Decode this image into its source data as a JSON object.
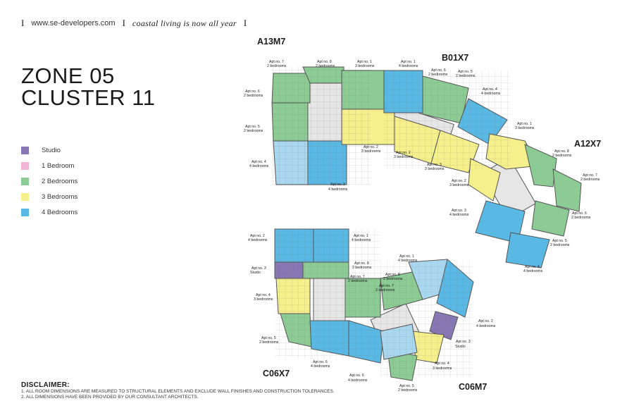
{
  "header": {
    "sep1": "I",
    "url": "www.se-developers.com",
    "sep2": "I",
    "tagline": "coastal living is now all year",
    "sep3": "I"
  },
  "title": {
    "line1": "ZONE 05",
    "line2": "CLUSTER 11"
  },
  "legend": [
    {
      "label": "Studio",
      "color": "#8877b5"
    },
    {
      "label": "1 Bedroom",
      "color": "#f2b4d6"
    },
    {
      "label": "2 Bedrooms",
      "color": "#8ccb93"
    },
    {
      "label": "3 Bedrooms",
      "color": "#f5ef8c"
    },
    {
      "label": "4 Bedrooms",
      "color": "#5ab8e4"
    }
  ],
  "colors": {
    "studio": "#8877b5",
    "two_bed": "#8ccb93",
    "three_bed": "#f5ef8c",
    "four_bed": "#5ab8e4",
    "four_bed_light": "#a9d7ef",
    "core": "#e3e3e3",
    "wall": "#555555"
  },
  "plan": {
    "blocks": [
      {
        "name": "A13M7"
      },
      {
        "name": "B01X7"
      },
      {
        "name": "A12X7"
      },
      {
        "name": "C06X7"
      },
      {
        "name": "C06M7"
      }
    ],
    "apartments": [
      {
        "no": "Apt no. 7",
        "type": "2 bedrooms"
      },
      {
        "no": "Apt no. 8",
        "type": "2 bedrooms"
      },
      {
        "no": "Apt no. 1",
        "type": "3 bedrooms"
      },
      {
        "no": "Apt no. 6",
        "type": "2 bedrooms"
      },
      {
        "no": "Apt no. 5",
        "type": "2 bedrooms"
      },
      {
        "no": "Apt no. 4",
        "type": "4 bedrooms"
      },
      {
        "no": "Apt no. 3",
        "type": "4 bedrooms"
      },
      {
        "no": "Apt no. 2",
        "type": "3 bedrooms"
      },
      {
        "no": "Apt no. 1",
        "type": "4 bedrooms"
      },
      {
        "no": "Apt no. 6",
        "type": "2 bedrooms"
      },
      {
        "no": "Apt no. 5",
        "type": "2 bedrooms"
      },
      {
        "no": "Apt no. 4",
        "type": "4 bedrooms"
      },
      {
        "no": "Apt no. 2",
        "type": "3 bedrooms"
      },
      {
        "no": "Apt no. 3",
        "type": "3 bedrooms"
      },
      {
        "no": "Apt no. 1",
        "type": "3 bedrooms"
      },
      {
        "no": "Apt no. 8",
        "type": "2 bedrooms"
      },
      {
        "no": "Apt no. 7",
        "type": "2 bedrooms"
      },
      {
        "no": "Apt no. 2",
        "type": "3 bedrooms"
      },
      {
        "no": "Apt no. 6",
        "type": "2 bedrooms"
      },
      {
        "no": "Apt no. 3",
        "type": "4 bedrooms"
      },
      {
        "no": "Apt no. 5",
        "type": "2 bedrooms"
      },
      {
        "no": "Apt no. 4",
        "type": "4 bedrooms"
      },
      {
        "no": "Apt no. 2",
        "type": "4 bedrooms"
      },
      {
        "no": "Apt no. 1",
        "type": "4 bedrooms"
      },
      {
        "no": "Apt no. 3",
        "type": "Studio"
      },
      {
        "no": "Apt no. 8",
        "type": "2 bedrooms"
      },
      {
        "no": "Apt no. 7",
        "type": "2 bedrooms"
      },
      {
        "no": "Apt no. 4",
        "type": "3 bedrooms"
      },
      {
        "no": "Apt no. 5",
        "type": "2 bedrooms"
      },
      {
        "no": "Apt no. 6",
        "type": "4 bedrooms"
      },
      {
        "no": "Apt no. 1",
        "type": "4 bedrooms"
      },
      {
        "no": "Apt no. 8",
        "type": "2 bedrooms"
      },
      {
        "no": "Apt no. 7",
        "type": "2 bedrooms"
      },
      {
        "no": "Apt no. 2",
        "type": "4 bedrooms"
      },
      {
        "no": "Apt no. 3",
        "type": "Studio"
      },
      {
        "no": "Apt no. 4",
        "type": "3 bedrooms"
      },
      {
        "no": "Apt no. 6",
        "type": "4 bedrooms"
      },
      {
        "no": "Apt no. 5",
        "type": "2 bedrooms"
      }
    ]
  },
  "disclaimer": {
    "title": "DISCLAIMER:",
    "lines": [
      "1. ALL ROOM DIMENSIONS ARE MEASURED TO STRUCTURAL ELEMENTS AND EXCLUDE WALL FINISHES AND CONSTRUCTION TOLERANCES.",
      "2. ALL DIMENSIONS HAVE BEEN PROVIDED BY OUR CONSULTANT ARCHITECTS."
    ]
  }
}
